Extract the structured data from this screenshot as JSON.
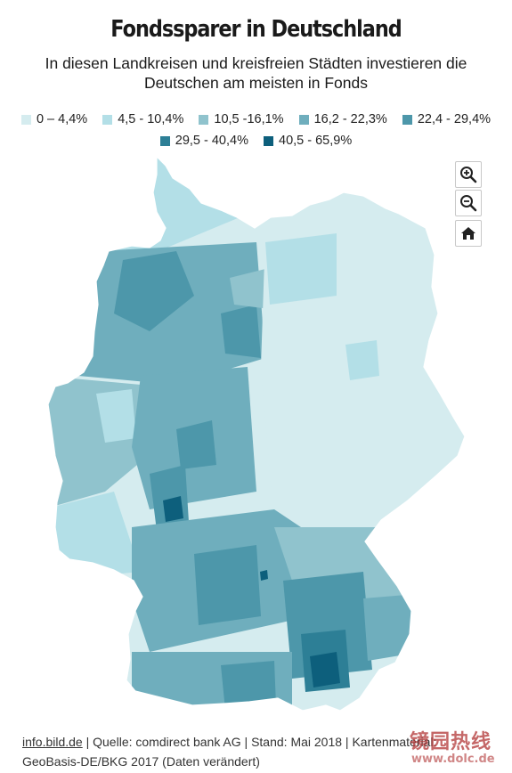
{
  "title": "Fondssparer in Deutschland",
  "subtitle": "In diesen Landkreisen und kreisfreien Städten investieren die Deutschen am meisten in Fonds",
  "legend": [
    {
      "label": "0 – 4,4%",
      "color": "#d5ecef"
    },
    {
      "label": "4,5 - 10,4%",
      "color": "#b3dfe7"
    },
    {
      "label": "10,5 -16,1%",
      "color": "#90c3cd"
    },
    {
      "label": "16,2 - 22,3%",
      "color": "#6faebd"
    },
    {
      "label": "22,4 - 29,4%",
      "color": "#4d97aa"
    },
    {
      "label": "29,5 - 40,4%",
      "color": "#2d7f96"
    },
    {
      "label": "40,5 - 65,9%",
      "color": "#0d5f7c"
    }
  ],
  "zoom_controls": {
    "zoom_in_icon": "zoom-in-icon",
    "zoom_out_icon": "zoom-out-icon",
    "home_icon": "home-icon"
  },
  "footer": {
    "source_link": "info.bild.de",
    "source_text": " | Quelle: comdirect bank AG | Stand: Mai 2018 | Kartenmaterial: GeoBasis-DE/BKG 2017 (Daten verändert)"
  },
  "watermark": {
    "cn_text": "镜园热线",
    "url_text": "www.dolc.de"
  }
}
